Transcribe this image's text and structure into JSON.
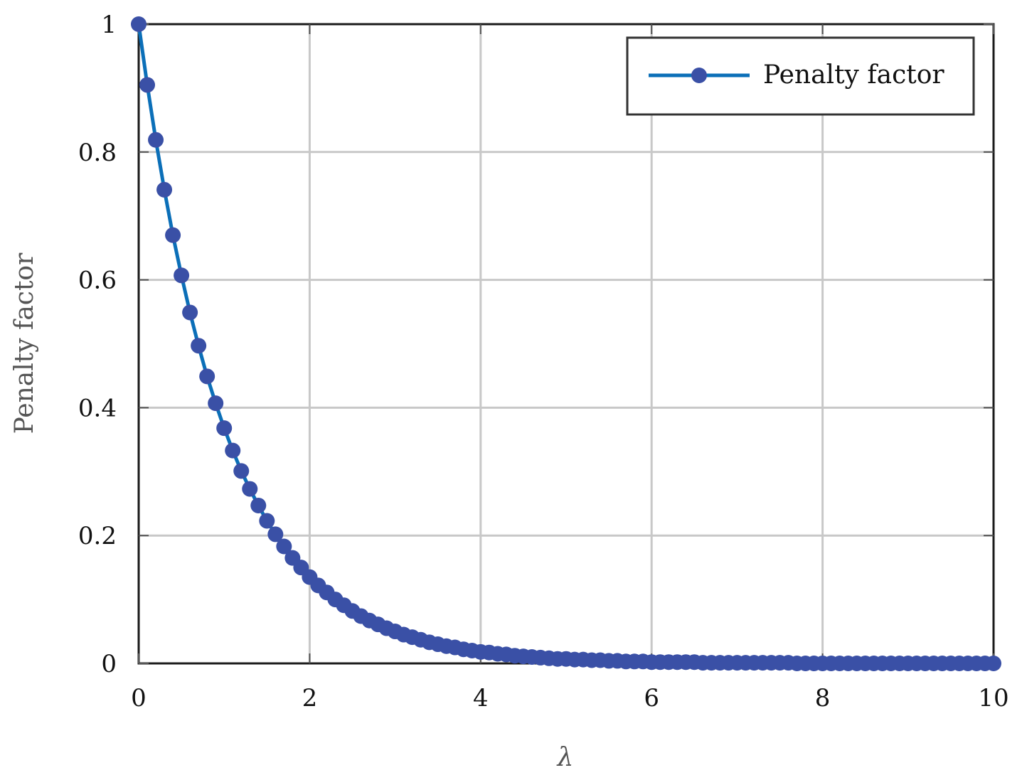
{
  "chart_data": {
    "type": "line",
    "title": "",
    "xlabel": "λ",
    "ylabel": "Penalty factor",
    "xlim": [
      0,
      10
    ],
    "ylim": [
      0,
      1
    ],
    "xticks": [
      0,
      2,
      4,
      6,
      8,
      10
    ],
    "xtick_labels": [
      "0",
      "2",
      "4",
      "6",
      "8",
      "10"
    ],
    "yticks": [
      0,
      0.2,
      0.4,
      0.6,
      0.8,
      1
    ],
    "ytick_labels": [
      "0",
      "0.2",
      "0.4",
      "0.6",
      "0.8",
      "1"
    ],
    "grid": true,
    "legend_position": "top-right",
    "series": [
      {
        "name": "Penalty factor",
        "line_color": "#0b6fb8",
        "marker_color": "#3a50a6",
        "marker": "circle",
        "x": [
          0,
          0.1,
          0.2,
          0.3,
          0.4,
          0.5,
          0.6,
          0.7,
          0.8,
          0.9,
          1.0,
          1.1,
          1.2,
          1.3,
          1.4,
          1.5,
          1.6,
          1.7,
          1.8,
          1.9,
          2.0,
          2.1,
          2.2,
          2.3,
          2.4,
          2.5,
          2.6,
          2.7,
          2.8,
          2.9,
          3.0,
          3.1,
          3.2,
          3.3,
          3.4,
          3.5,
          3.6,
          3.7,
          3.8,
          3.9,
          4.0,
          4.1,
          4.2,
          4.3,
          4.4,
          4.5,
          4.6,
          4.7,
          4.8,
          4.9,
          5.0,
          5.1,
          5.2,
          5.3,
          5.4,
          5.5,
          5.6,
          5.7,
          5.8,
          5.9,
          6.0,
          6.1,
          6.2,
          6.3,
          6.4,
          6.5,
          6.6,
          6.7,
          6.8,
          6.9,
          7.0,
          7.1,
          7.2,
          7.3,
          7.4,
          7.5,
          7.6,
          7.7,
          7.8,
          7.9,
          8.0,
          8.1,
          8.2,
          8.3,
          8.4,
          8.5,
          8.6,
          8.7,
          8.8,
          8.9,
          9.0,
          9.1,
          9.2,
          9.3,
          9.4,
          9.5,
          9.6,
          9.7,
          9.8,
          9.9,
          10.0
        ],
        "y": [
          1.0,
          0.905,
          0.819,
          0.741,
          0.67,
          0.607,
          0.549,
          0.497,
          0.449,
          0.407,
          0.368,
          0.333,
          0.301,
          0.273,
          0.247,
          0.223,
          0.202,
          0.183,
          0.165,
          0.15,
          0.135,
          0.122,
          0.111,
          0.1,
          0.091,
          0.082,
          0.074,
          0.067,
          0.061,
          0.055,
          0.05,
          0.045,
          0.041,
          0.037,
          0.033,
          0.03,
          0.027,
          0.025,
          0.022,
          0.02,
          0.018,
          0.017,
          0.015,
          0.014,
          0.012,
          0.011,
          0.01,
          0.009,
          0.008,
          0.007,
          0.007,
          0.006,
          0.006,
          0.005,
          0.005,
          0.004,
          0.004,
          0.003,
          0.003,
          0.003,
          0.002,
          0.002,
          0.002,
          0.002,
          0.002,
          0.002,
          0.001,
          0.001,
          0.001,
          0.001,
          0.001,
          0.001,
          0.001,
          0.001,
          0.001,
          0.001,
          0.001,
          0.0,
          0.0,
          0.0,
          0.0,
          0.0,
          0.0,
          0.0,
          0.0,
          0.0,
          0.0,
          0.0,
          0.0,
          0.0,
          0.0,
          0.0,
          0.0,
          0.0,
          0.0,
          0.0,
          0.0,
          0.0,
          0.0,
          0.0,
          0.0
        ]
      }
    ]
  }
}
